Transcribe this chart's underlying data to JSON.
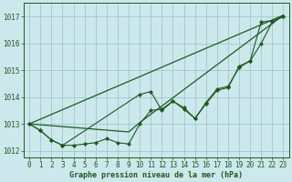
{
  "title": "Graphe pression niveau de la mer (hPa)",
  "background_color": "#cce8ec",
  "grid_color": "#9ec8cc",
  "line_color": "#1a5c1a",
  "xlim": [
    -0.5,
    23.5
  ],
  "ylim": [
    1011.75,
    1017.5
  ],
  "yticks": [
    1012,
    1013,
    1014,
    1015,
    1016,
    1017
  ],
  "xticks": [
    0,
    1,
    2,
    3,
    4,
    5,
    6,
    7,
    8,
    9,
    10,
    11,
    12,
    13,
    14,
    15,
    16,
    17,
    18,
    19,
    20,
    21,
    22,
    23
  ],
  "series1_x": [
    0,
    1,
    2,
    3,
    4,
    5,
    6,
    7,
    8,
    9,
    10,
    11,
    12,
    13,
    14,
    15,
    16,
    17,
    18,
    19,
    20,
    21,
    22,
    23
  ],
  "series1_y": [
    1013.0,
    1012.75,
    1012.4,
    1012.2,
    1012.2,
    1012.25,
    1012.3,
    1012.45,
    1012.3,
    1012.25,
    1013.0,
    1013.5,
    1013.55,
    1013.85,
    1013.55,
    1013.2,
    1013.75,
    1014.25,
    1014.35,
    1015.15,
    1015.35,
    1016.0,
    1016.8,
    1017.0
  ],
  "series2_x": [
    0,
    1,
    2,
    3,
    10,
    11,
    12,
    13,
    14,
    15,
    16,
    17,
    18,
    19,
    20,
    21,
    22,
    23
  ],
  "series2_y": [
    1013.0,
    1012.75,
    1012.4,
    1012.2,
    1014.1,
    1014.2,
    1013.5,
    1013.85,
    1013.6,
    1013.2,
    1013.8,
    1014.3,
    1014.4,
    1015.1,
    1015.35,
    1016.8,
    1016.85,
    1017.0
  ],
  "trend1_x": [
    0,
    23
  ],
  "trend1_y": [
    1013.0,
    1017.05
  ],
  "trend2_x": [
    0,
    9,
    10,
    23
  ],
  "trend2_y": [
    1013.0,
    1012.7,
    1013.05,
    1017.05
  ]
}
